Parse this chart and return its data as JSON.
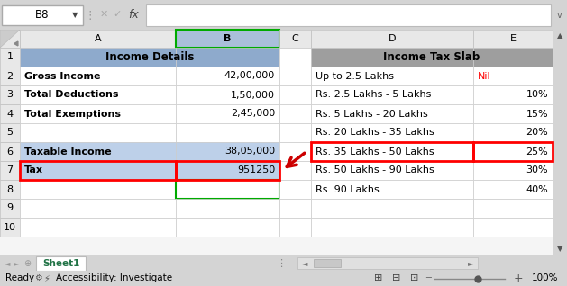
{
  "title_bar_text": "B8",
  "sheet_tab": "Sheet1",
  "income_details_header": "Income Details",
  "income_tax_slab_header": "Income Tax Slab",
  "left_table": [
    [
      "Gross Income",
      "42,00,000"
    ],
    [
      "Total Deductions",
      "1,50,000"
    ],
    [
      "Total Exemptions",
      "2,45,000"
    ],
    [
      "",
      ""
    ],
    [
      "Taxable Income",
      "38,05,000"
    ],
    [
      "Tax",
      "951250"
    ]
  ],
  "right_table": [
    [
      "Up to 2.5 Lakhs",
      "Nil"
    ],
    [
      "Rs. 2.5 Lakhs - 5 Lakhs",
      "10%"
    ],
    [
      "Rs. 5 Lakhs - 20 Lakhs",
      "15%"
    ],
    [
      "Rs. 20 Lakhs - 35 Lakhs",
      "20%"
    ],
    [
      "Rs. 35 Lakhs - 50 Lakhs",
      "25%"
    ],
    [
      "Rs. 50 Lakhs - 90 Lakhs",
      "30%"
    ],
    [
      "Rs. 90 Lakhs",
      "40%"
    ]
  ],
  "colors": {
    "header_bg_left": "#8EAACC",
    "header_bg_right": "#9E9E9E",
    "row_highlight_blue": "#BDD0E9",
    "excel_bg": "#C8C8C8",
    "grid_line": "#D0D0D0",
    "tab_text": "#217346",
    "nil_text": "#FF0000",
    "scrollbar_bg": "#E0E0E0",
    "col_header_bg": "#E8E8E8",
    "col_B_header_bg": "#AABFDA",
    "white": "#FFFFFF",
    "arrow_color": "#CC0000",
    "red_border": "#FF0000",
    "green_border": "#00AA00",
    "outer_bg": "#D4D4D4"
  },
  "figsize": [
    6.29,
    3.18
  ],
  "dpi": 100
}
